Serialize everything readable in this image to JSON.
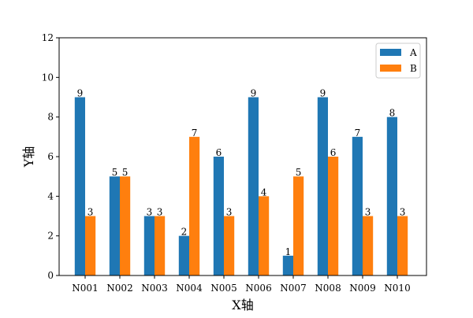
{
  "chart_data": {
    "type": "bar",
    "title": "",
    "xlabel": "X轴",
    "ylabel": "Y轴",
    "categories": [
      "N001",
      "N002",
      "N003",
      "N004",
      "N005",
      "N006",
      "N007",
      "N008",
      "N009",
      "N010"
    ],
    "series": [
      {
        "name": "A",
        "color": "#1f77b4",
        "values": [
          9,
          5,
          3,
          2,
          6,
          9,
          1,
          9,
          7,
          8
        ]
      },
      {
        "name": "B",
        "color": "#ff7f0e",
        "values": [
          3,
          5,
          3,
          7,
          3,
          4,
          5,
          6,
          3,
          3
        ]
      }
    ],
    "ylim": [
      0,
      12
    ],
    "yticks": [
      0,
      2,
      4,
      6,
      8,
      10,
      12
    ],
    "grid": false,
    "legend": "top-right",
    "data_labels": true
  }
}
